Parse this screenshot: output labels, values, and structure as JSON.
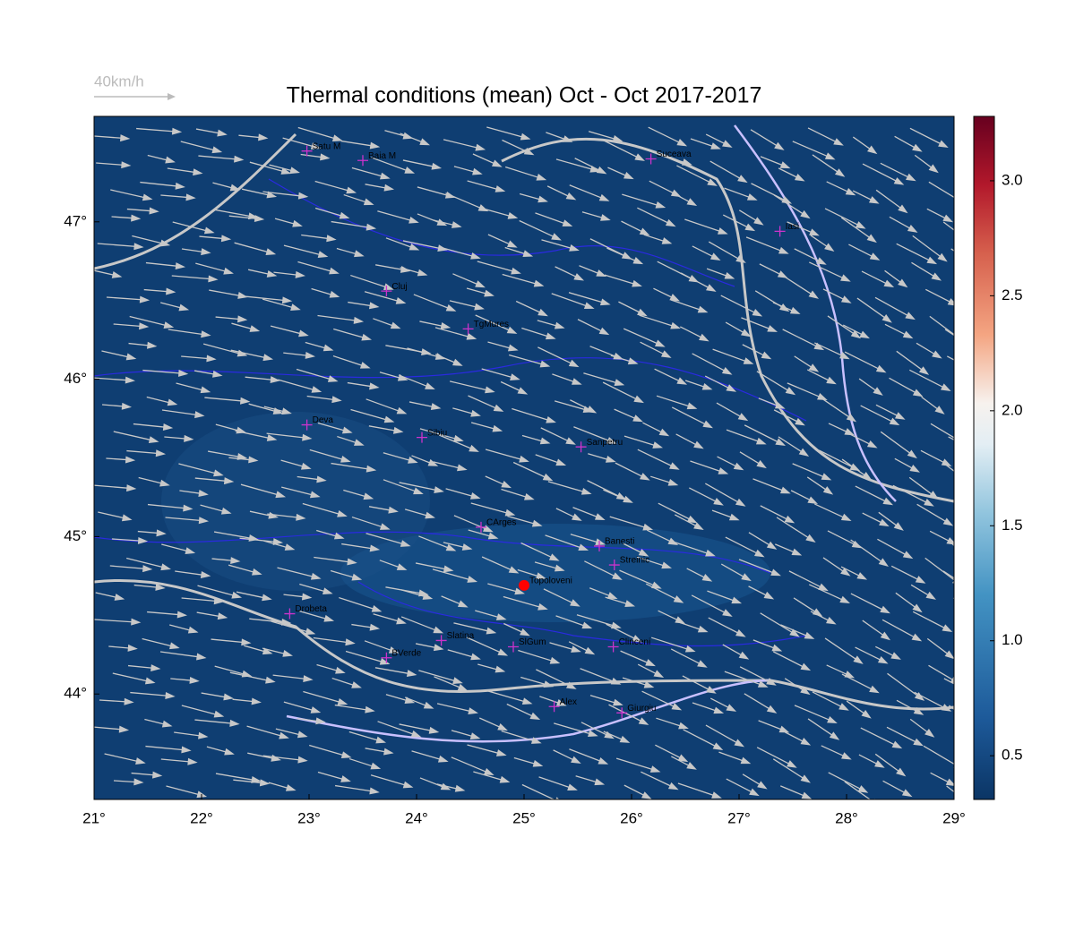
{
  "map": {
    "type": "map",
    "title": "Thermal conditions (mean) Oct - Oct  2017-2017",
    "wind_legend": "40km/h",
    "xlim": [
      21,
      29
    ],
    "ylim": [
      43.33,
      47.67
    ],
    "xticks": [
      {
        "value": 21,
        "label": "21°"
      },
      {
        "value": 22,
        "label": "22°"
      },
      {
        "value": 23,
        "label": "23°"
      },
      {
        "value": 24,
        "label": "24°"
      },
      {
        "value": 25,
        "label": "25°"
      },
      {
        "value": 26,
        "label": "26°"
      },
      {
        "value": 27,
        "label": "27°"
      },
      {
        "value": 28,
        "label": "28°"
      },
      {
        "value": 29,
        "label": "29°"
      }
    ],
    "yticks": [
      {
        "value": 44,
        "label": "44°"
      },
      {
        "value": 45,
        "label": "45°"
      },
      {
        "value": 46,
        "label": "46°"
      },
      {
        "value": 47,
        "label": "47°"
      }
    ],
    "clim": [
      0.31,
      3.28
    ],
    "cticks": [
      0.5,
      {
        "value": 1,
        "label": "1.0"
      },
      1.5,
      {
        "value": 2,
        "label": "2.0"
      },
      2.5,
      {
        "value": 3,
        "label": "3.0"
      }
    ],
    "cities": [
      {
        "label": "Satu M",
        "lon": 22.98,
        "lat": 47.45,
        "color": "#cc33cc"
      },
      {
        "label": "Baia M",
        "lon": 23.5,
        "lat": 47.39,
        "color": "#cc33cc"
      },
      {
        "label": "Suceava",
        "lon": 26.18,
        "lat": 47.4,
        "color": "#cc33cc"
      },
      {
        "label": "Iasi",
        "lon": 27.38,
        "lat": 46.94,
        "color": "#cc33cc"
      },
      {
        "label": "Cluj",
        "lon": 23.72,
        "lat": 46.56,
        "color": "#cc33cc"
      },
      {
        "label": "TgMures",
        "lon": 24.48,
        "lat": 46.32,
        "color": "#cc33cc"
      },
      {
        "label": "Deva",
        "lon": 22.98,
        "lat": 45.71,
        "color": "#cc33cc"
      },
      {
        "label": "Sibiu",
        "lon": 24.05,
        "lat": 45.63,
        "color": "#cc33cc"
      },
      {
        "label": "Sanpetru",
        "lon": 25.53,
        "lat": 45.57,
        "color": "#cc33cc"
      },
      {
        "label": "CArges",
        "lon": 24.6,
        "lat": 45.06,
        "color": "#cc33cc"
      },
      {
        "label": "Banesti",
        "lon": 25.7,
        "lat": 44.94,
        "color": "#cc33cc"
      },
      {
        "label": "Streinic",
        "lon": 25.84,
        "lat": 44.82,
        "color": "#cc33cc"
      },
      {
        "label": "Topoloveni",
        "lon": 25.0,
        "lat": 44.69,
        "color": "#ff0000"
      },
      {
        "label": "Drobeta",
        "lon": 22.82,
        "lat": 44.51,
        "color": "#cc33cc"
      },
      {
        "label": "Slatina",
        "lon": 24.23,
        "lat": 44.34,
        "color": "#cc33cc"
      },
      {
        "label": "SlGum",
        "lon": 24.9,
        "lat": 44.3,
        "color": "#cc33cc"
      },
      {
        "label": "Clinceni",
        "lon": 25.83,
        "lat": 44.3,
        "color": "#cc33cc"
      },
      {
        "label": "BVerde",
        "lon": 23.72,
        "lat": 44.23,
        "color": "#cc33cc"
      },
      {
        "label": "Alex",
        "lon": 25.28,
        "lat": 43.92,
        "color": "#cc33cc"
      },
      {
        "label": "Giurgiu",
        "lon": 25.91,
        "lat": 43.88,
        "color": "#cc33cc"
      }
    ]
  }
}
